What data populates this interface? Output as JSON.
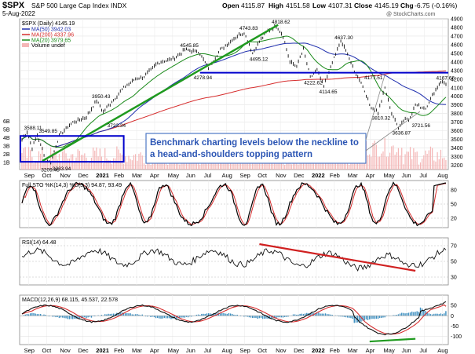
{
  "header": {
    "symbol": "$SPX",
    "name": "S&P 500 Large Cap Index",
    "exchange": "INDX",
    "date": "5-Aug-2022",
    "open_label": "Open",
    "open": "4115.87",
    "high_label": "High",
    "high": "4151.58",
    "low_label": "Low",
    "low": "4107.31",
    "close_label": "Close",
    "close": "4145.19",
    "chg_label": "Chg",
    "chg": "-6.75 (-0.16%)",
    "watermark": "@ StockCharts.com"
  },
  "legend": {
    "price": "$SPX (Daily) 4145.19",
    "ma50": "MA(50) 3942.03",
    "ma200": "MA(200) 4337.96",
    "ma20": "MA(20) 3979.65",
    "volume": "Volume undef"
  },
  "colors": {
    "ma50": "#1f2fae",
    "ma200": "#d62d2d",
    "ma20": "#1a8a1a",
    "trendline": "#1f9a1f",
    "neckline": "#0000cc",
    "volume": "#f4b6b6",
    "macd_hist": "#3d8fc0",
    "sto_k": "#000000",
    "sto_d": "#d62d2d"
  },
  "annotation": {
    "line1": "Benchmark charting levels below the neckline to",
    "line2": "a head-and-shoulders topping pattern"
  },
  "months": [
    "Sep",
    "Oct",
    "Nov",
    "Dec",
    "2021",
    "Feb",
    "Mar",
    "Apr",
    "May",
    "Jun",
    "Jul",
    "Aug",
    "Sep",
    "Oct",
    "Nov",
    "Dec",
    "2022",
    "Feb",
    "Mar",
    "Apr",
    "May",
    "Jun",
    "Jul",
    "Aug"
  ],
  "volume_labels": [
    "6B",
    "5B",
    "4B",
    "3B",
    "2B",
    "1B"
  ],
  "chart_data": [
    {
      "type": "line",
      "panel": "price",
      "ylim": [
        3150,
        4900
      ],
      "yticks": [
        3200,
        3300,
        3400,
        3500,
        3600,
        3700,
        3800,
        3900,
        4000,
        4100,
        4200,
        4300,
        4400,
        4500,
        4600,
        4700,
        4800,
        4900
      ],
      "neckline": 4275,
      "series_pts": [
        [
          0,
          3500
        ],
        [
          3,
          3588
        ],
        [
          6,
          3400
        ],
        [
          9,
          3550
        ],
        [
          14,
          3270
        ],
        [
          17,
          3230
        ],
        [
          22,
          3550
        ],
        [
          30,
          3700
        ],
        [
          38,
          3760
        ],
        [
          44,
          3950
        ],
        [
          48,
          3820
        ],
        [
          54,
          3960
        ],
        [
          60,
          4100
        ],
        [
          66,
          4190
        ],
        [
          72,
          4230
        ],
        [
          80,
          4390
        ],
        [
          90,
          4440
        ],
        [
          96,
          4540
        ],
        [
          104,
          4520
        ],
        [
          110,
          4330
        ],
        [
          117,
          4540
        ],
        [
          126,
          4690
        ],
        [
          131,
          4744
        ],
        [
          136,
          4500
        ],
        [
          140,
          4640
        ],
        [
          145,
          4760
        ],
        [
          150,
          4819
        ],
        [
          154,
          4700
        ],
        [
          158,
          4400
        ],
        [
          162,
          4350
        ],
        [
          166,
          4550
        ],
        [
          170,
          4223
        ],
        [
          174,
          4300
        ],
        [
          178,
          4115
        ],
        [
          184,
          4450
        ],
        [
          188,
          4637
        ],
        [
          192,
          4500
        ],
        [
          196,
          4280
        ],
        [
          200,
          4170
        ],
        [
          205,
          3900
        ],
        [
          210,
          3810
        ],
        [
          214,
          4100
        ],
        [
          218,
          3800
        ],
        [
          222,
          3637
        ],
        [
          226,
          3750
        ],
        [
          228,
          3722
        ],
        [
          232,
          3900
        ],
        [
          238,
          3860
        ],
        [
          243,
          4050
        ],
        [
          247,
          4167
        ],
        [
          250,
          4145
        ]
      ],
      "price_labels": [
        "3588.11",
        "3549.85",
        "3209.45",
        "3233.94",
        "3950.43",
        "3723.34",
        "4545.85",
        "4278.94",
        "4743.83",
        "4495.12",
        "4818.62",
        "4222.62",
        "4114.65",
        "4637.30",
        "4177.51",
        "3810.32",
        "3636.87",
        "3721.56",
        "4167.66"
      ]
    },
    {
      "type": "line",
      "panel": "stochastic",
      "title": "Full STO %K(14,3) %D(3,3) 94.87, 93.49",
      "ylim": [
        0,
        100
      ],
      "yticks": [
        20,
        50,
        80
      ],
      "last_k": 94.87,
      "last_d": 93.49
    },
    {
      "type": "line",
      "panel": "rsi",
      "title": "RSI(14) 64.48",
      "ylim": [
        20,
        80
      ],
      "yticks": [
        30,
        50,
        70
      ],
      "last": 64.48
    },
    {
      "type": "line",
      "panel": "macd",
      "title": "MACD(12,26,9) 68.115, 45.537, 22.578",
      "ylim": [
        -140,
        100
      ],
      "yticks": [
        -100,
        -50,
        0,
        50
      ],
      "macd": 68.115,
      "signal": 45.537,
      "histogram": 22.578
    }
  ]
}
